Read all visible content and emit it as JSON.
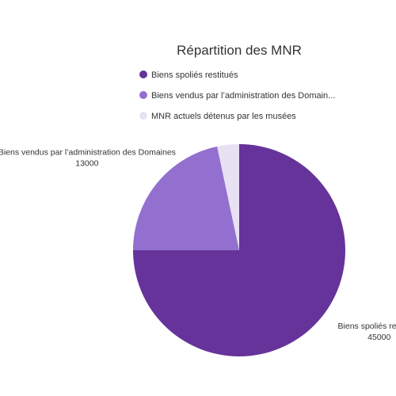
{
  "chart_data": {
    "type": "pie",
    "title": "Répartition des MNR",
    "slices": [
      {
        "label": "Biens spoliés restitués",
        "legend_label": "Biens spoliés restitués",
        "value": 45000,
        "value_label": "45000",
        "color": "#66339a",
        "show_label": true
      },
      {
        "label": "Biens vendus par l’administration des Domaines",
        "legend_label": "Biens vendus par l’administration des Domain...",
        "value": 13000,
        "value_label": "13000",
        "color": "#9370cf",
        "show_label": true
      },
      {
        "label": "MNR actuels détenus par les musées",
        "legend_label": "MNR actuels détenus par les musées",
        "value": 2000,
        "value_label": "",
        "color": "#e8e1f4",
        "show_label": false
      }
    ],
    "legend_position": "top"
  }
}
